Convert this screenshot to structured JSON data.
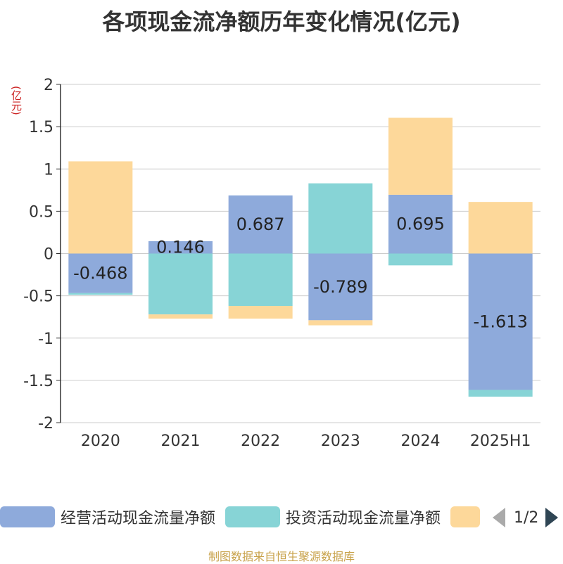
{
  "title": "各项现金流净额历年变化情况(亿元)",
  "unit_label": "(亿元)",
  "footer": "制图数据来自恒生聚源数据库",
  "legend": {
    "items": [
      {
        "label": "经营活动现金流量净额",
        "color": "#8eaadb"
      },
      {
        "label": "投资活动现金流量净额",
        "color": "#87d4d6"
      },
      {
        "label": "",
        "color": "#fdd89a"
      }
    ],
    "page_text": "1/2"
  },
  "chart_data": {
    "type": "bar",
    "stacked": true,
    "categories": [
      "2020",
      "2021",
      "2022",
      "2023",
      "2024",
      "2025H1"
    ],
    "series": [
      {
        "name": "经营活动现金流量净额",
        "color": "#8eaadb",
        "values": [
          -0.468,
          0.146,
          0.687,
          -0.789,
          0.695,
          -1.613
        ],
        "show_labels": true
      },
      {
        "name": "投资活动现金流量净额",
        "color": "#87d4d6",
        "values": [
          -0.02,
          -0.72,
          -0.62,
          0.83,
          -0.14,
          -0.08
        ],
        "show_labels": false
      },
      {
        "color": "#fdd89a",
        "values": [
          1.09,
          -0.05,
          -0.15,
          -0.06,
          0.91,
          0.61
        ],
        "show_labels": false
      }
    ],
    "ylim": [
      -2,
      2
    ],
    "yticks": [
      2,
      1.5,
      1,
      0.5,
      0,
      -0.5,
      -1,
      -1.5,
      -2
    ],
    "ytick_labels": [
      "2",
      "1.5",
      "1",
      "0.5",
      "0",
      "-0.5",
      "-1",
      "-1.5",
      "-2"
    ],
    "grid": true
  }
}
